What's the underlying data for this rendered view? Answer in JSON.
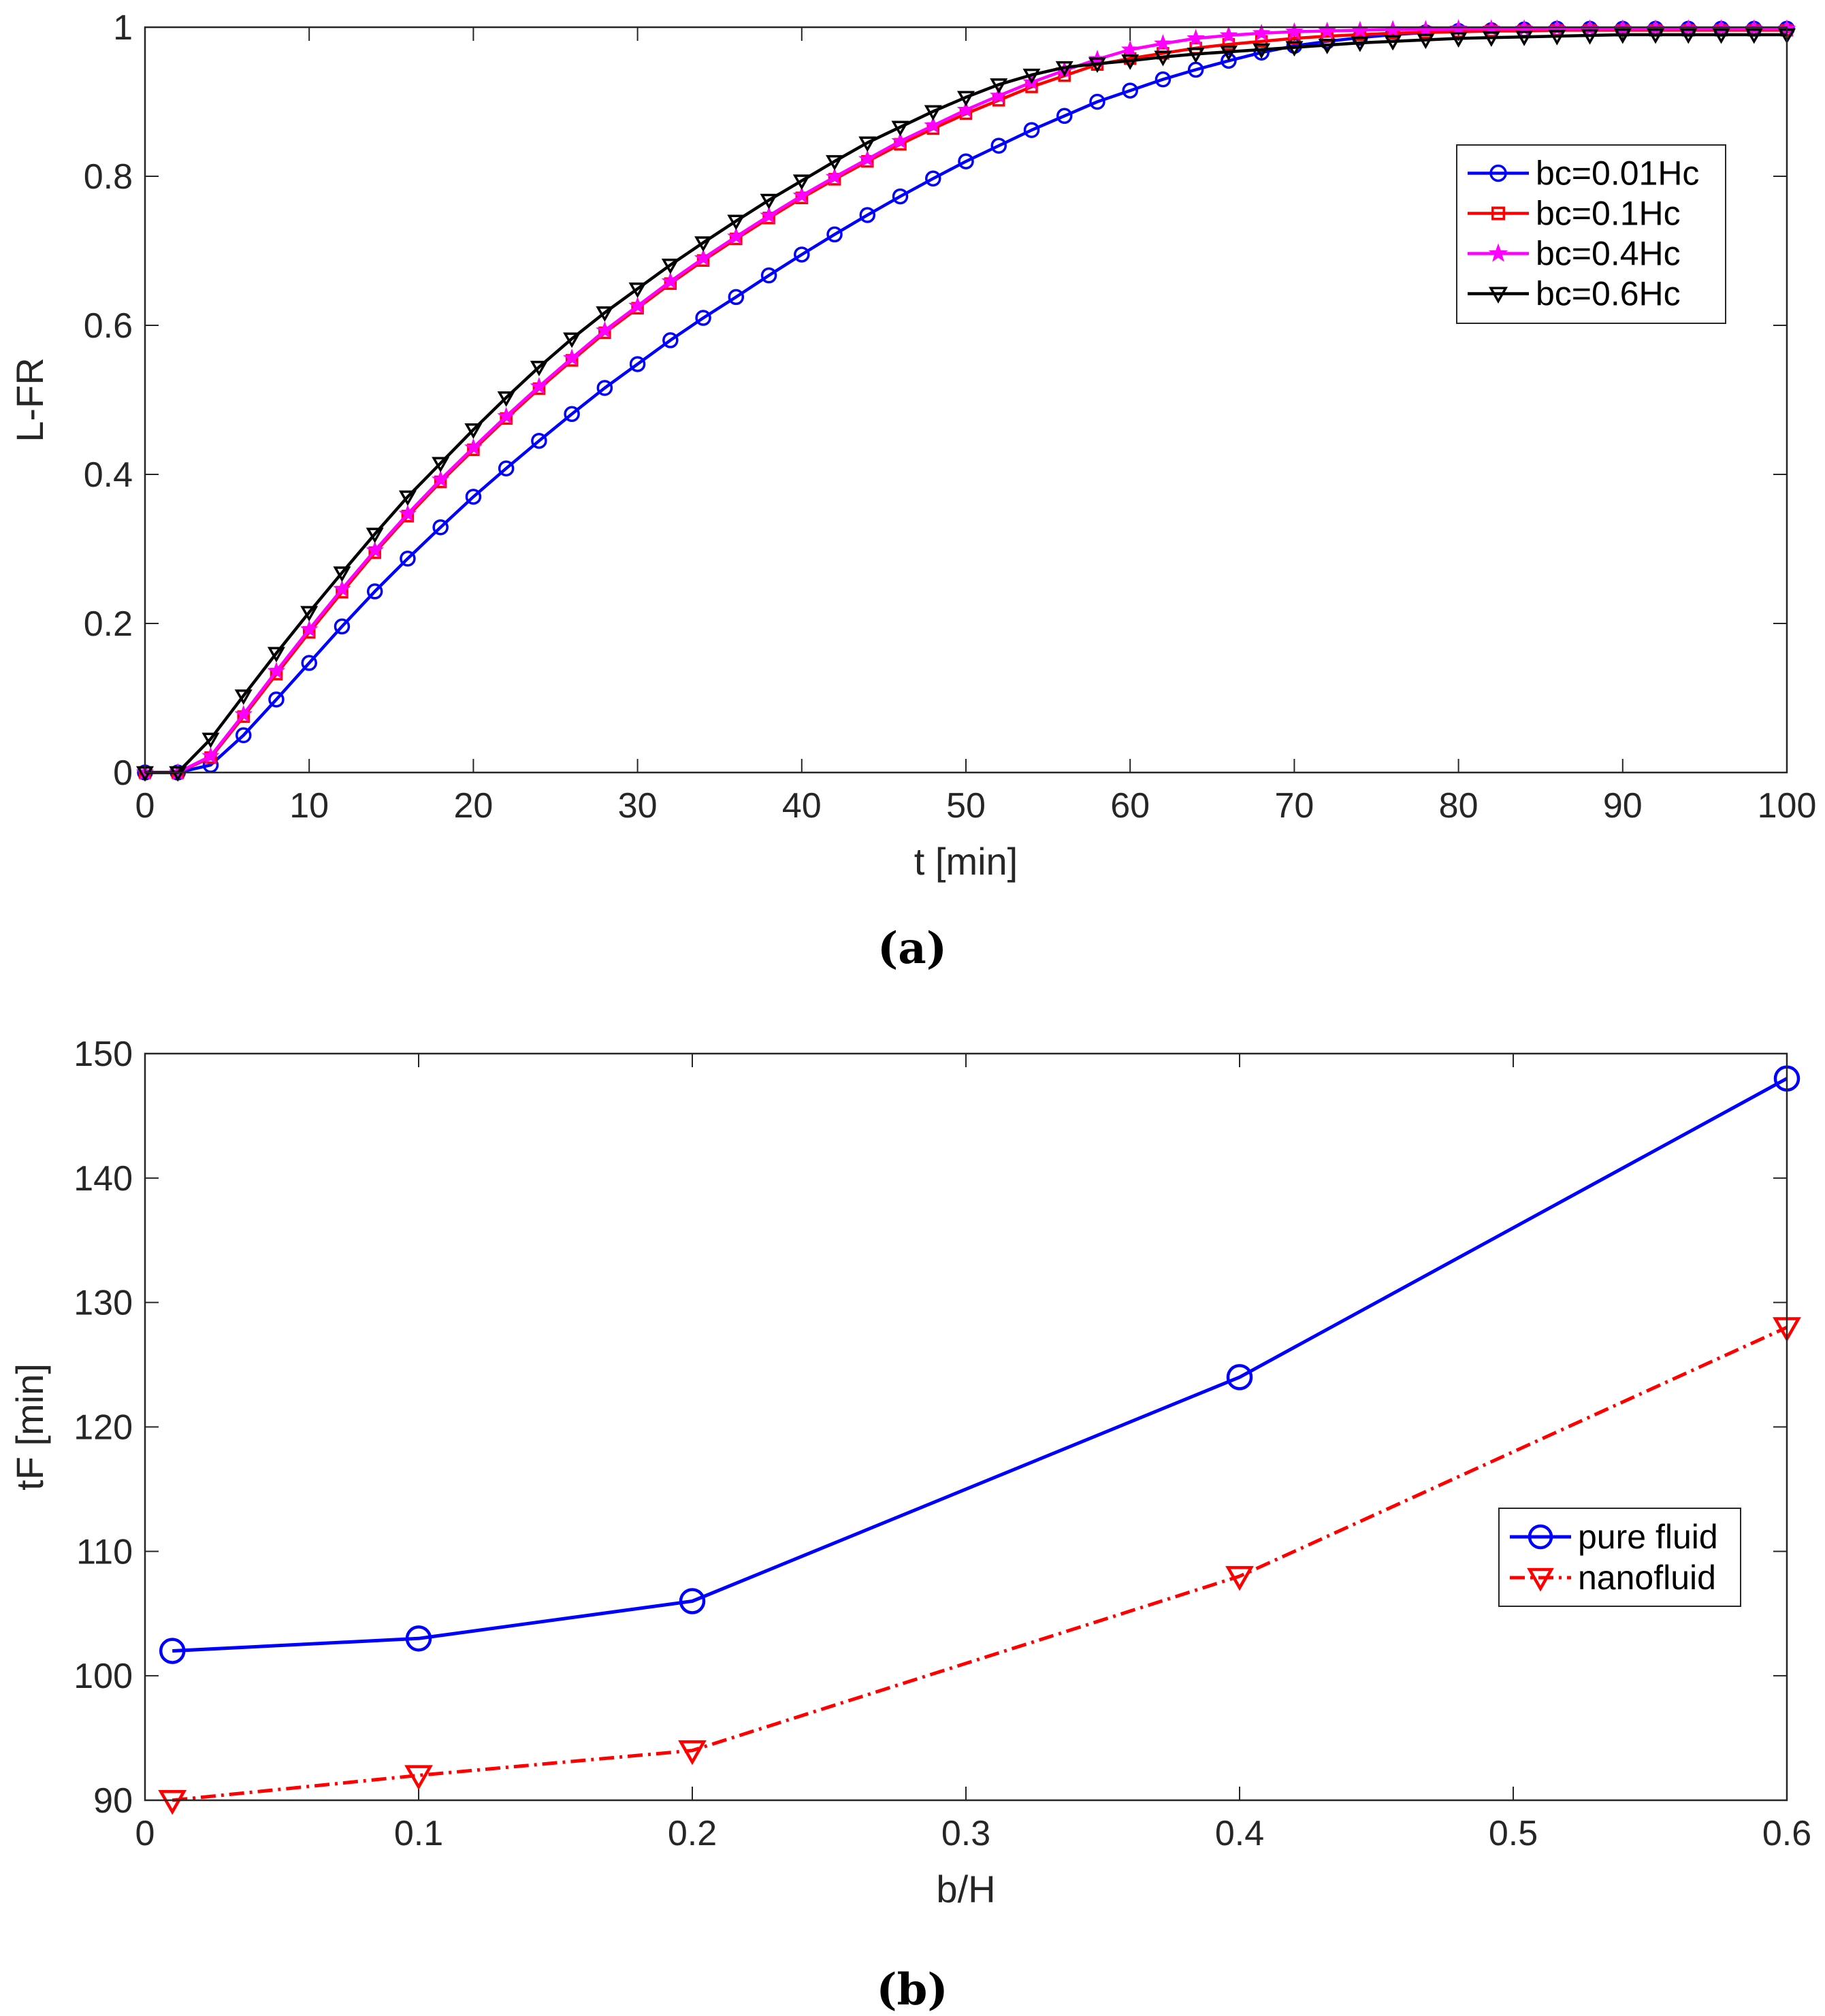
{
  "chart_data": [
    {
      "type": "line",
      "panel_label": "(a)",
      "xlabel": "t [min]",
      "ylabel": "L-FR",
      "xlim": [
        0,
        100
      ],
      "ylim": [
        0,
        1
      ],
      "xticks": [
        0,
        10,
        20,
        30,
        40,
        50,
        60,
        70,
        80,
        90,
        100
      ],
      "yticks": [
        0,
        0.2,
        0.4,
        0.6,
        0.8,
        1
      ],
      "legend_position": "top-right",
      "series": [
        {
          "name": "bc=0.01Hc",
          "color": "#0000ff",
          "marker": "circle",
          "x": [
            0,
            2,
            4,
            6,
            8,
            10,
            12,
            14,
            16,
            18,
            20,
            22,
            24,
            26,
            28,
            30,
            32,
            34,
            36,
            38,
            40,
            42,
            44,
            46,
            48,
            50,
            52,
            54,
            56,
            58,
            60,
            62,
            64,
            66,
            68,
            70,
            72,
            74,
            76,
            78,
            80,
            82,
            84,
            86,
            88,
            90,
            92,
            94,
            96,
            98,
            100
          ],
          "y": [
            0,
            0,
            0.01,
            0.05,
            0.098,
            0.147,
            0.196,
            0.243,
            0.287,
            0.329,
            0.37,
            0.408,
            0.445,
            0.481,
            0.516,
            0.548,
            0.58,
            0.61,
            0.638,
            0.667,
            0.695,
            0.722,
            0.748,
            0.773,
            0.797,
            0.82,
            0.841,
            0.862,
            0.881,
            0.9,
            0.915,
            0.93,
            0.943,
            0.955,
            0.966,
            0.975,
            0.981,
            0.986,
            0.99,
            0.993,
            0.995,
            0.996,
            0.997,
            0.998,
            0.998,
            0.998,
            0.998,
            0.998,
            0.998,
            0.998,
            0.998
          ]
        },
        {
          "name": "bc=0.1Hc",
          "color": "#ff0000",
          "marker": "square",
          "x": [
            0,
            2,
            4,
            6,
            8,
            10,
            12,
            14,
            16,
            18,
            20,
            22,
            24,
            26,
            28,
            30,
            32,
            34,
            36,
            38,
            40,
            42,
            44,
            46,
            48,
            50,
            52,
            54,
            56,
            58,
            60,
            62,
            64,
            66,
            68,
            70,
            72,
            74,
            76,
            78,
            80,
            82,
            84,
            86,
            88,
            90,
            92,
            94,
            96,
            98,
            100
          ],
          "y": [
            0,
            0,
            0.02,
            0.075,
            0.132,
            0.188,
            0.242,
            0.295,
            0.344,
            0.39,
            0.433,
            0.475,
            0.515,
            0.553,
            0.59,
            0.623,
            0.656,
            0.687,
            0.716,
            0.744,
            0.771,
            0.796,
            0.82,
            0.843,
            0.864,
            0.884,
            0.902,
            0.92,
            0.935,
            0.95,
            0.958,
            0.965,
            0.972,
            0.977,
            0.981,
            0.985,
            0.988,
            0.99,
            0.992,
            0.993,
            0.994,
            0.995,
            0.995,
            0.996,
            0.996,
            0.996,
            0.996,
            0.996,
            0.996,
            0.996,
            0.996
          ]
        },
        {
          "name": "bc=0.4Hc",
          "color": "#ff00ff",
          "marker": "star",
          "x": [
            0,
            2,
            4,
            6,
            8,
            10,
            12,
            14,
            16,
            18,
            20,
            22,
            24,
            26,
            28,
            30,
            32,
            34,
            36,
            38,
            40,
            42,
            44,
            46,
            48,
            50,
            52,
            54,
            56,
            58,
            60,
            62,
            64,
            66,
            68,
            70,
            72,
            74,
            76,
            78,
            80,
            82,
            84,
            86,
            88,
            90,
            92,
            94,
            96,
            98,
            100
          ],
          "y": [
            0,
            0,
            0.022,
            0.078,
            0.136,
            0.192,
            0.246,
            0.298,
            0.347,
            0.393,
            0.436,
            0.478,
            0.518,
            0.556,
            0.593,
            0.626,
            0.659,
            0.69,
            0.719,
            0.747,
            0.774,
            0.799,
            0.823,
            0.847,
            0.868,
            0.889,
            0.908,
            0.926,
            0.942,
            0.957,
            0.97,
            0.978,
            0.985,
            0.989,
            0.992,
            0.994,
            0.995,
            0.996,
            0.997,
            0.997,
            0.998,
            0.998,
            0.998,
            0.998,
            0.998,
            0.998,
            0.998,
            0.998,
            0.998,
            0.998,
            0.998
          ]
        },
        {
          "name": "bc=0.6Hc",
          "color": "#000000",
          "marker": "triangle-down",
          "x": [
            0,
            2,
            4,
            6,
            8,
            10,
            12,
            14,
            16,
            18,
            20,
            22,
            24,
            26,
            28,
            30,
            32,
            34,
            36,
            38,
            40,
            42,
            44,
            46,
            48,
            50,
            52,
            54,
            56,
            58,
            60,
            62,
            64,
            66,
            68,
            70,
            72,
            74,
            76,
            78,
            80,
            82,
            84,
            86,
            88,
            90,
            92,
            94,
            96,
            98,
            100
          ],
          "y": [
            0,
            0,
            0.045,
            0.103,
            0.16,
            0.215,
            0.268,
            0.32,
            0.37,
            0.415,
            0.46,
            0.503,
            0.544,
            0.582,
            0.617,
            0.649,
            0.681,
            0.711,
            0.74,
            0.768,
            0.794,
            0.82,
            0.845,
            0.866,
            0.887,
            0.906,
            0.923,
            0.936,
            0.946,
            0.951,
            0.955,
            0.96,
            0.964,
            0.967,
            0.97,
            0.973,
            0.976,
            0.979,
            0.981,
            0.983,
            0.985,
            0.986,
            0.987,
            0.988,
            0.989,
            0.99,
            0.99,
            0.99,
            0.99,
            0.99,
            0.99
          ]
        }
      ]
    },
    {
      "type": "line",
      "panel_label": "(b)",
      "xlabel": "b/H",
      "ylabel": "tF [min]",
      "xlim": [
        0,
        0.6
      ],
      "ylim": [
        90,
        150
      ],
      "xticks": [
        0,
        0.1,
        0.2,
        0.3,
        0.4,
        0.5,
        0.6
      ],
      "yticks": [
        90,
        100,
        110,
        120,
        130,
        140,
        150
      ],
      "legend_position": "right",
      "series": [
        {
          "name": "pure fluid",
          "color": "#0000ff",
          "marker": "circle",
          "linestyle": "solid",
          "x": [
            0.01,
            0.1,
            0.2,
            0.4,
            0.6
          ],
          "y": [
            102,
            103,
            106,
            124,
            148
          ]
        },
        {
          "name": "nanofluid",
          "color": "#ff0000",
          "marker": "triangle-down",
          "linestyle": "dashdot",
          "x": [
            0.01,
            0.1,
            0.2,
            0.4,
            0.6
          ],
          "y": [
            90,
            92,
            94,
            108,
            128
          ]
        }
      ]
    }
  ]
}
